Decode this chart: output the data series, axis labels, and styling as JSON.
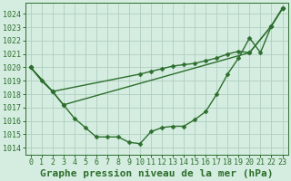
{
  "x": [
    0,
    1,
    2,
    3,
    4,
    5,
    6,
    7,
    8,
    9,
    10,
    11,
    12,
    13,
    14,
    15,
    16,
    17,
    18,
    19,
    20,
    21,
    22,
    23
  ],
  "line1": [
    1020.0,
    1019.0,
    1018.2,
    1017.2,
    1016.2,
    1015.5,
    1014.8,
    1014.8,
    1014.8,
    1014.4,
    1014.3,
    1015.2,
    1015.5,
    1015.6,
    1015.6,
    1016.1,
    1016.7,
    1018.0,
    1019.5,
    1020.7,
    1022.2,
    1021.1,
    1023.1,
    1024.4
  ],
  "line2_x": [
    0,
    2,
    3,
    20,
    22,
    23
  ],
  "line2_y": [
    1020.0,
    1018.2,
    1017.2,
    1021.1,
    1023.1,
    1024.4
  ],
  "line3_x": [
    0,
    2,
    10,
    11,
    12,
    13,
    14,
    15,
    16,
    17,
    18,
    19,
    20,
    22,
    23
  ],
  "line3_y": [
    1020.0,
    1018.2,
    1019.5,
    1019.7,
    1019.9,
    1020.1,
    1020.2,
    1020.3,
    1020.5,
    1020.7,
    1021.0,
    1021.2,
    1021.1,
    1023.1,
    1024.4
  ],
  "ylim": [
    1013.5,
    1024.8
  ],
  "xlim": [
    -0.5,
    23.5
  ],
  "yticks": [
    1014,
    1015,
    1016,
    1017,
    1018,
    1019,
    1020,
    1021,
    1022,
    1023,
    1024
  ],
  "xticks": [
    0,
    1,
    2,
    3,
    4,
    5,
    6,
    7,
    8,
    9,
    10,
    11,
    12,
    13,
    14,
    15,
    16,
    17,
    18,
    19,
    20,
    21,
    22,
    23
  ],
  "xlabel": "Graphe pression niveau de la mer (hPa)",
  "line_color": "#2d6e2d",
  "bg_color": "#d4ede0",
  "grid_color": "#b0cfc0",
  "marker": "D",
  "marker_size": 2.5,
  "line_width": 1.0,
  "xlabel_fontsize": 8,
  "tick_fontsize": 6
}
